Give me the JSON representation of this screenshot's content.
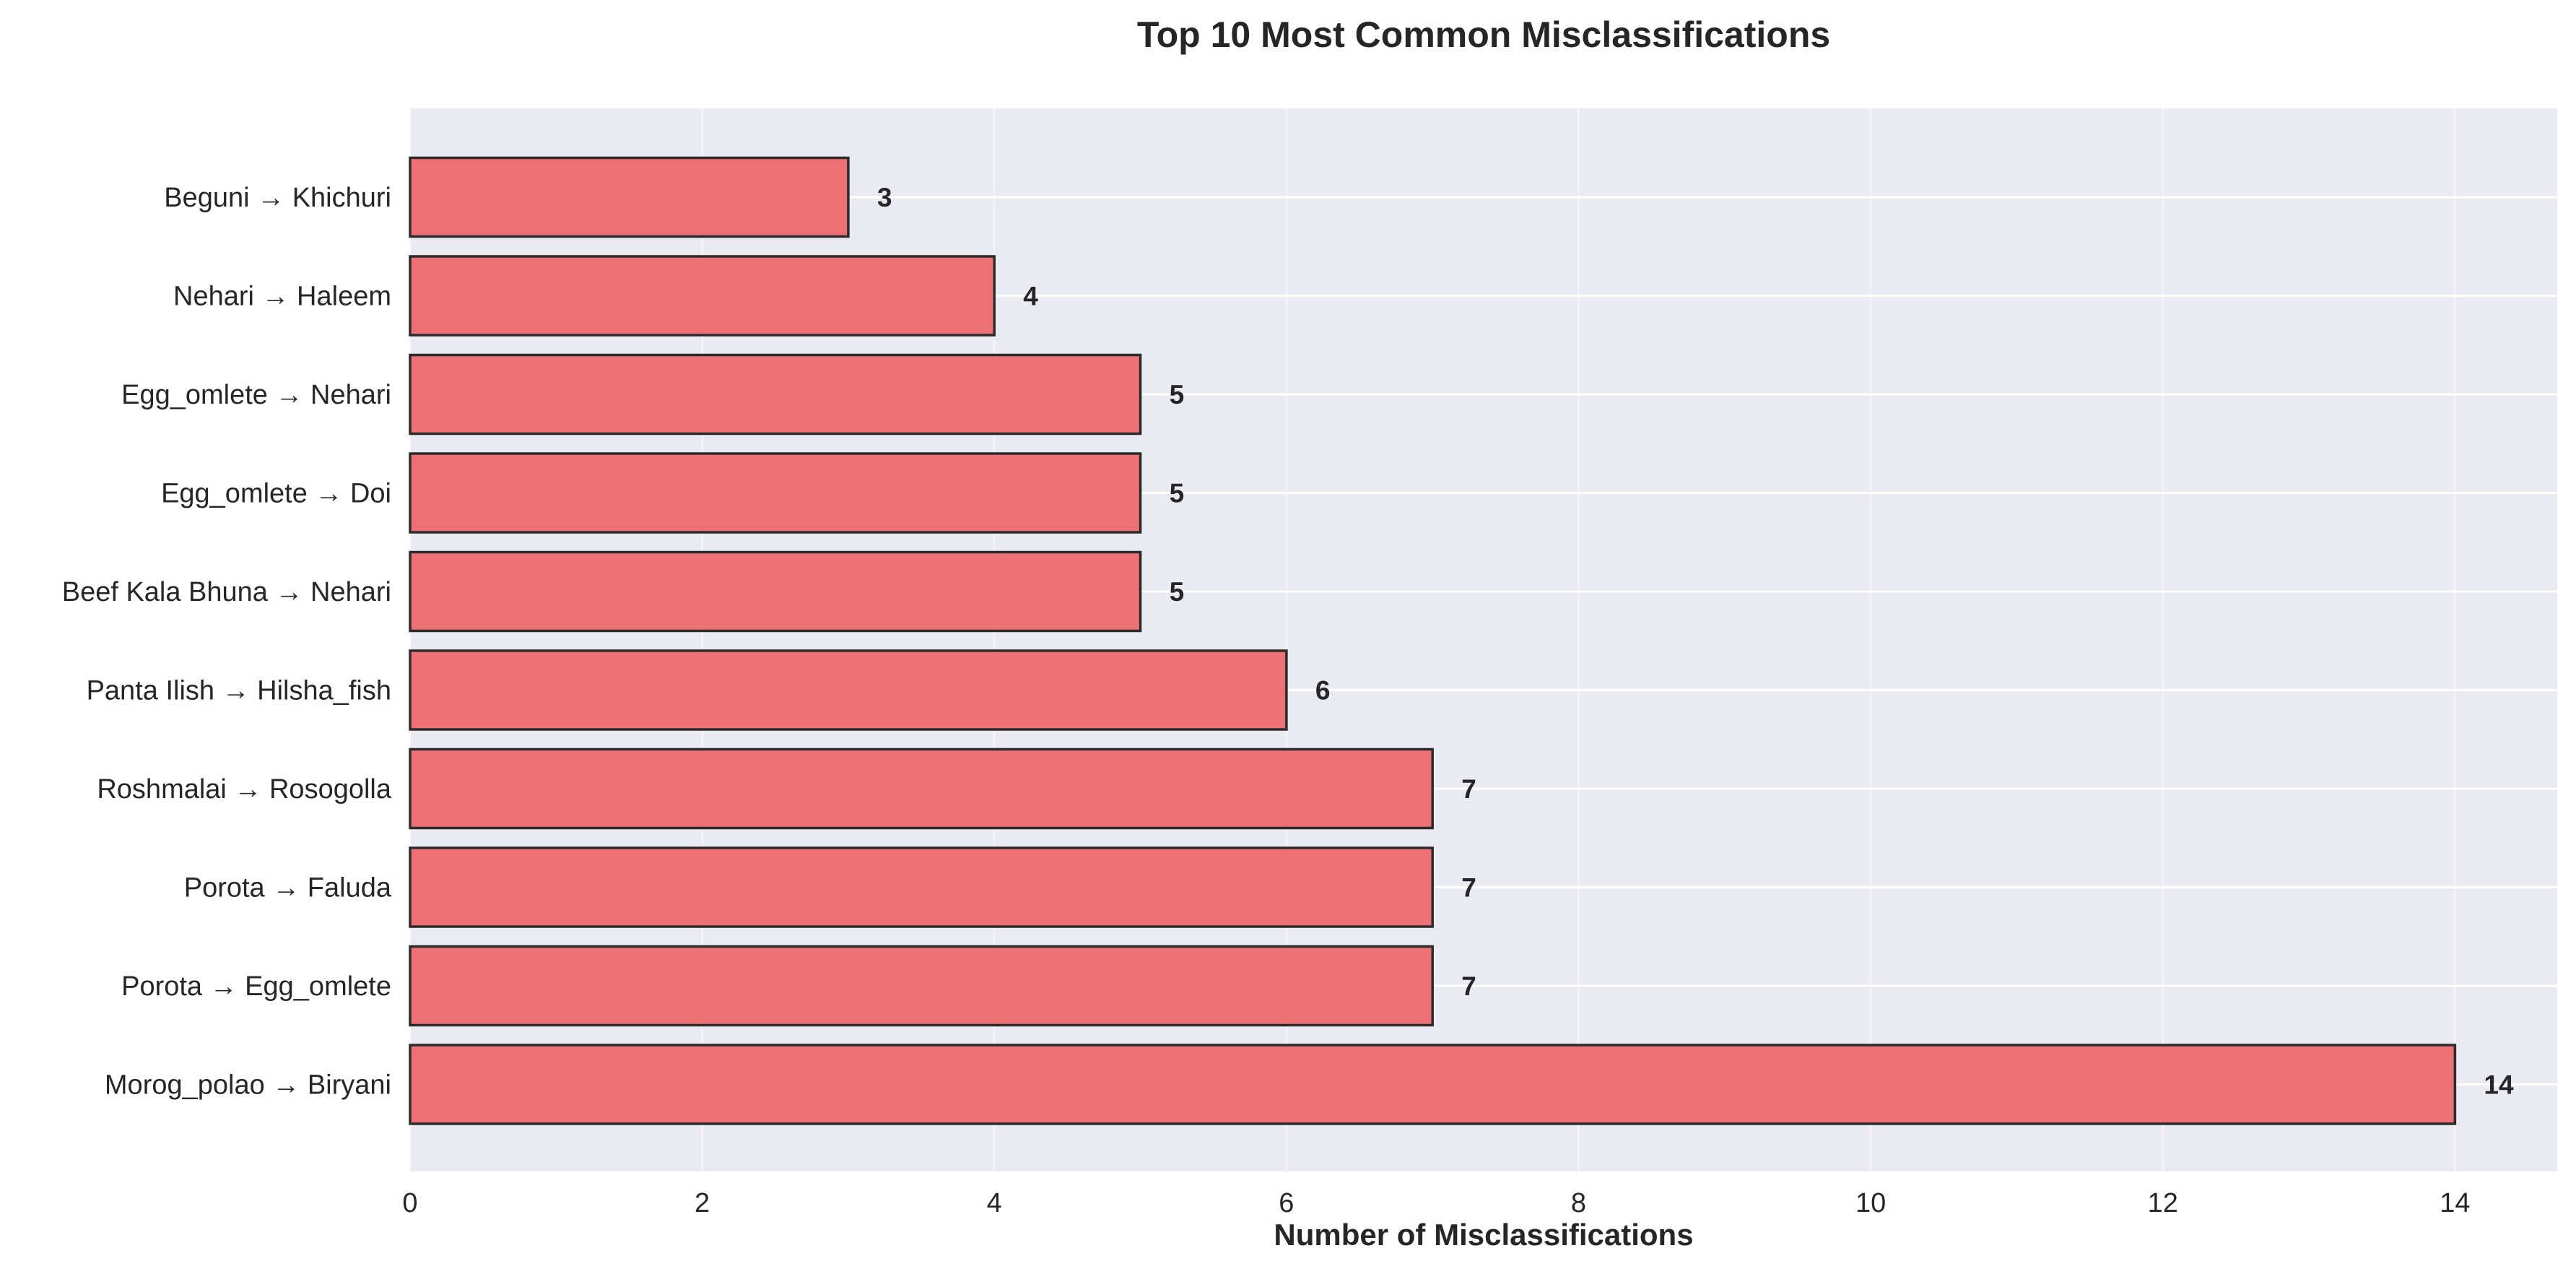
{
  "chart_data": {
    "type": "bar",
    "orientation": "horizontal",
    "title": "Top 10 Most Common Misclassifications",
    "xlabel": "Number of Misclassifications",
    "ylabel": "",
    "categories": [
      "Beguni  → Khichuri",
      "Nehari  → Haleem",
      "Egg_omlete  → Nehari",
      "Egg_omlete  → Doi",
      "Beef Kala Bhuna  → Nehari",
      "Panta Ilish  → Hilsha_fish",
      "Roshmalai  → Rosogolla",
      "Porota  → Faluda",
      "Porota  → Egg_omlete",
      "Morog_polao  → Biryani"
    ],
    "values": [
      3,
      4,
      5,
      5,
      5,
      6,
      7,
      7,
      7,
      14
    ],
    "value_labels": [
      "3",
      "4",
      "5",
      "5",
      "5",
      "6",
      "7",
      "7",
      "7",
      "14"
    ],
    "xlim": [
      0,
      14.7
    ],
    "xticks": [
      0,
      2,
      4,
      6,
      8,
      10,
      12,
      14
    ],
    "xtick_labels": [
      "0",
      "2",
      "4",
      "6",
      "8",
      "10",
      "12",
      "14"
    ],
    "grid": true,
    "legend": "none",
    "colors": {
      "bar_fill": "#ed7075",
      "bar_edge": "#2b2b2b",
      "plot_background": "#eaeaf2",
      "grid": "#ffffff",
      "text": "#262626"
    }
  }
}
